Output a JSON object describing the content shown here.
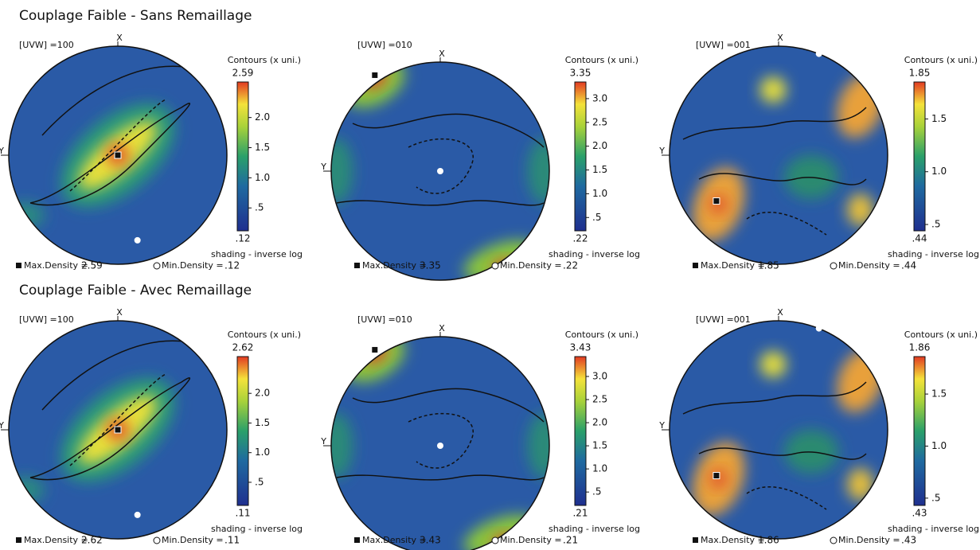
{
  "rows": [
    {
      "title": "Couplage Faible - Sans Remaillage",
      "panels": [
        {
          "uvw": "[UVW] =100",
          "x_label": "X",
          "y_label": "Y",
          "contours_label": "Contours (x uni.)",
          "scale_max": "2.59",
          "scale_ticks": [
            "2.0",
            "1.5",
            "1.0",
            ".5"
          ],
          "scale_min": ".12",
          "shading": "shading - inverse log",
          "max_label": "Max.Density =",
          "max_value": "2.59",
          "min_label": "Min.Density =",
          "min_value": ".12"
        },
        {
          "uvw": "[UVW] =010",
          "x_label": "X",
          "y_label": "Y",
          "contours_label": "Contours (x uni.)",
          "scale_max": "3.35",
          "scale_ticks": [
            "3.0",
            "2.5",
            "2.0",
            "1.5",
            "1.0",
            ".5"
          ],
          "scale_min": ".22",
          "shading": "shading - inverse log",
          "max_label": "Max.Density =",
          "max_value": "3.35",
          "min_label": "Min.Density =",
          "min_value": ".22"
        },
        {
          "uvw": "[UVW] =001",
          "x_label": "X",
          "y_label": "Y",
          "contours_label": "Contours (x uni.)",
          "scale_max": "1.85",
          "scale_ticks": [
            "1.5",
            "1.0",
            ".5"
          ],
          "scale_min": ".44",
          "shading": "shading - inverse log",
          "max_label": "Max.Density =",
          "max_value": "1.85",
          "min_label": "Min.Density =",
          "min_value": ".44"
        }
      ]
    },
    {
      "title": "Couplage Faible - Avec Remaillage",
      "panels": [
        {
          "uvw": "[UVW] =100",
          "x_label": "X",
          "y_label": "Y",
          "contours_label": "Contours (x uni.)",
          "scale_max": "2.62",
          "scale_ticks": [
            "2.0",
            "1.5",
            "1.0",
            ".5"
          ],
          "scale_min": ".11",
          "shading": "shading - inverse log",
          "max_label": "Max.Density =",
          "max_value": "2.62",
          "min_label": "Min.Density =",
          "min_value": ".11"
        },
        {
          "uvw": "[UVW] =010",
          "x_label": "X",
          "y_label": "Y",
          "contours_label": "Contours (x uni.)",
          "scale_max": "3.43",
          "scale_ticks": [
            "3.0",
            "2.5",
            "2.0",
            "1.5",
            "1.0",
            ".5"
          ],
          "scale_min": ".21",
          "shading": "shading - inverse log",
          "max_label": "Max.Density =",
          "max_value": "3.43",
          "min_label": "Min.Density =",
          "min_value": ".21"
        },
        {
          "uvw": "[UVW] =001",
          "x_label": "X",
          "y_label": "Y",
          "contours_label": "Contours (x uni.)",
          "scale_max": "1.86",
          "scale_ticks": [
            "1.5",
            "1.0",
            ".5"
          ],
          "scale_min": ".43",
          "shading": "shading - inverse log",
          "max_label": "Max.Density =",
          "max_value": "1.86",
          "min_label": "Min.Density =",
          "min_value": ".43"
        }
      ]
    }
  ]
}
